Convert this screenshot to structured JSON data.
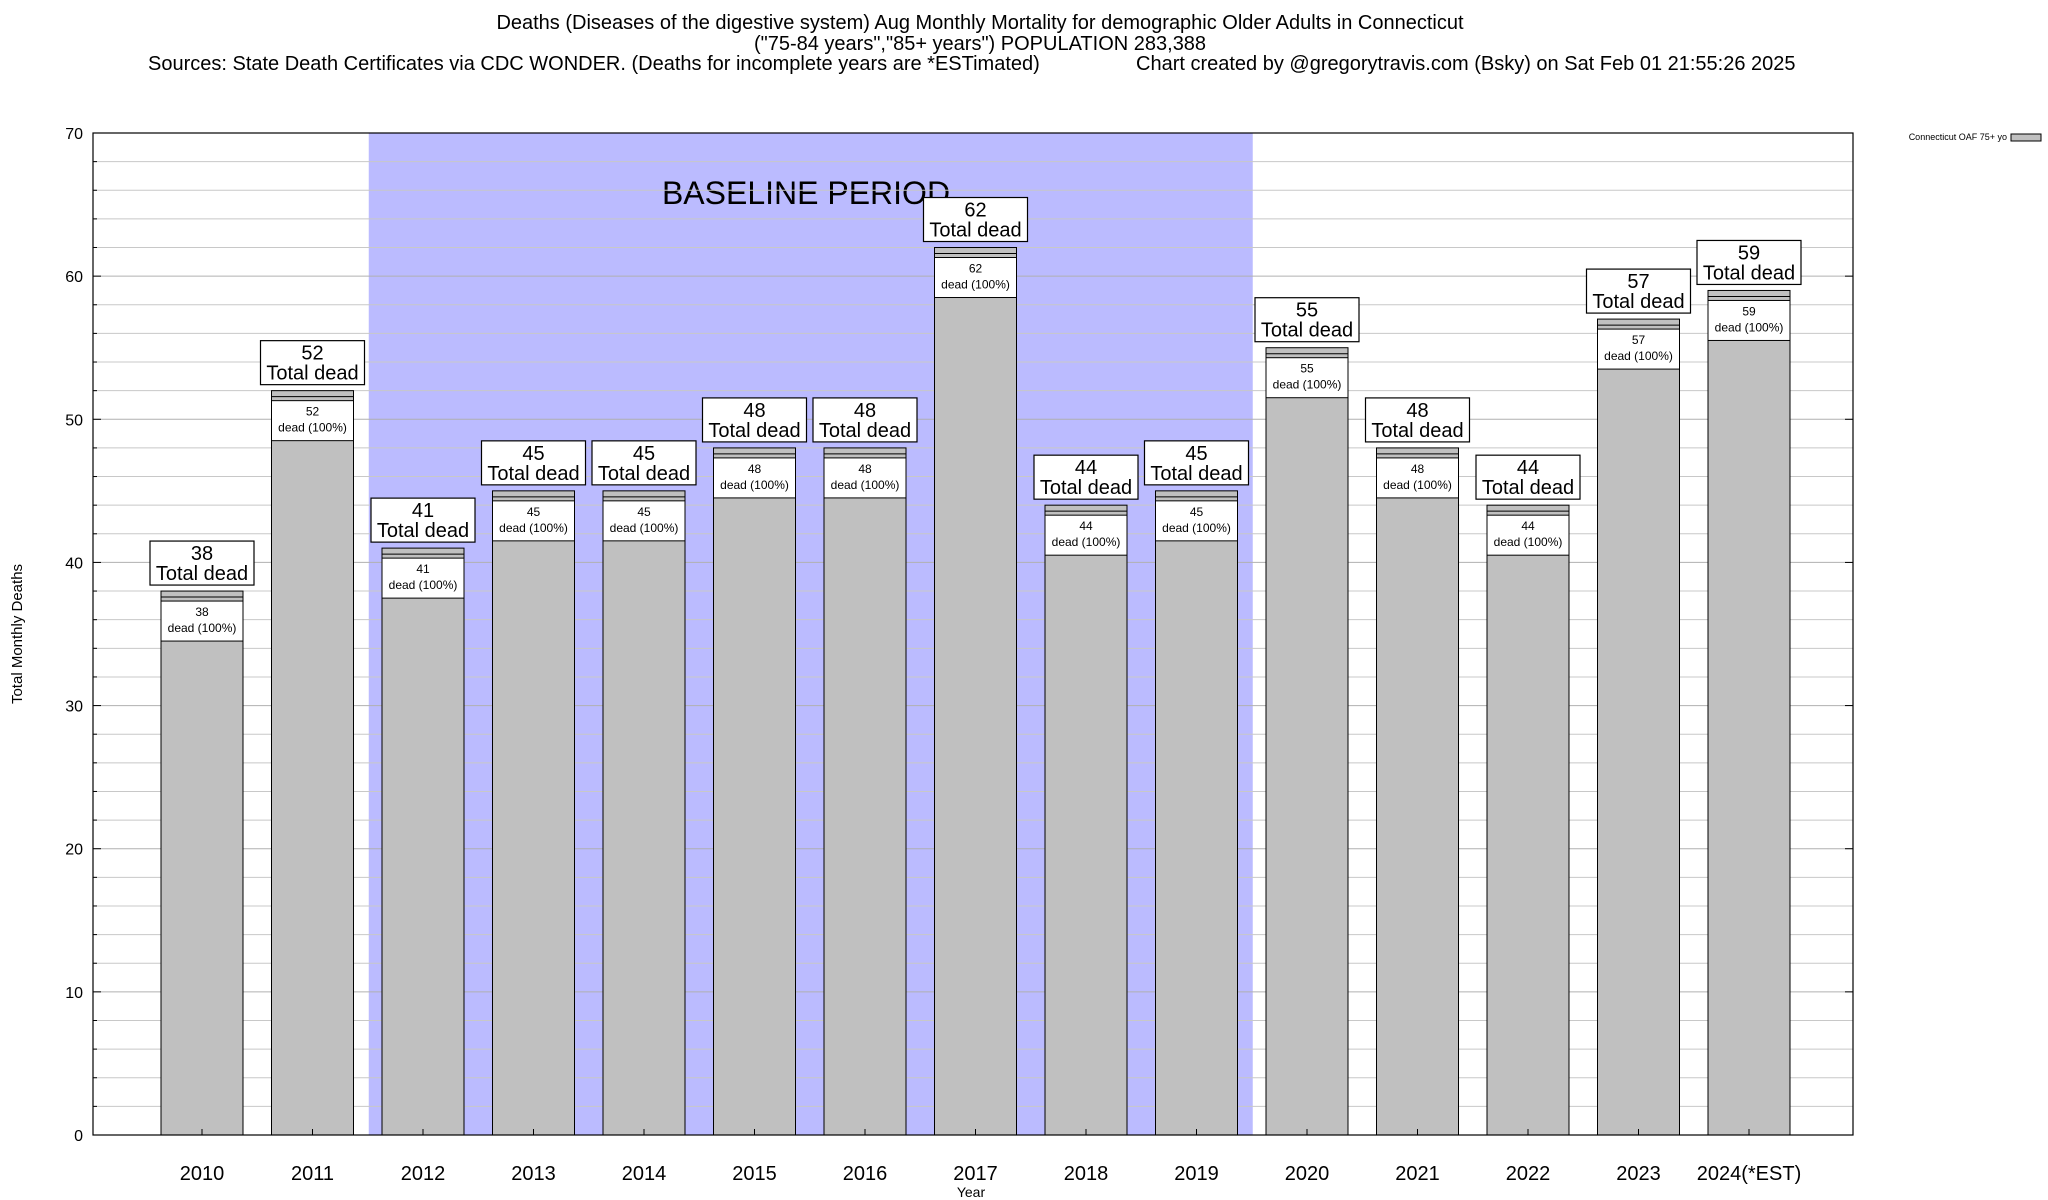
{
  "chart_data": {
    "type": "bar",
    "title": "Deaths (Diseases of the digestive system) Aug Monthly Mortality for demographic Older Adults in Connecticut",
    "subtitle": "(\"75-84 years\",\"85+ years\") POPULATION 283,388",
    "sources": "Sources: State Death Certificates via CDC WONDER. (Deaths for incomplete years are *ESTimated)",
    "credit": "Chart created by @gregorytravis.com (Bsky) on Sat Feb 01 21:55:26 2025",
    "xlabel": "Year",
    "ylabel": "Total Monthly Deaths",
    "ylim": [
      0,
      70
    ],
    "yticks": [
      0,
      10,
      20,
      30,
      40,
      50,
      60,
      70
    ],
    "categories": [
      "2010",
      "2011",
      "2012",
      "2013",
      "2014",
      "2015",
      "2016",
      "2017",
      "2018",
      "2019",
      "2020",
      "2021",
      "2022",
      "2023",
      "2024(*EST)"
    ],
    "series": [
      {
        "name": "Connecticut OAF 75+ yo",
        "values": [
          38,
          52,
          41,
          45,
          45,
          48,
          48,
          62,
          44,
          45,
          55,
          48,
          44,
          57,
          59
        ]
      }
    ],
    "bar_label_suffix": "Total dead",
    "inner_label_suffix": "dead (100%)",
    "baseline": {
      "label": "BASELINE PERIOD",
      "start": "2012",
      "end": "2019"
    },
    "grid": true,
    "legend_position": "top-right",
    "colors": {
      "bar": "#c0c0c0",
      "baseline": "#bbbbff",
      "grid": "#c8c8c8"
    }
  }
}
